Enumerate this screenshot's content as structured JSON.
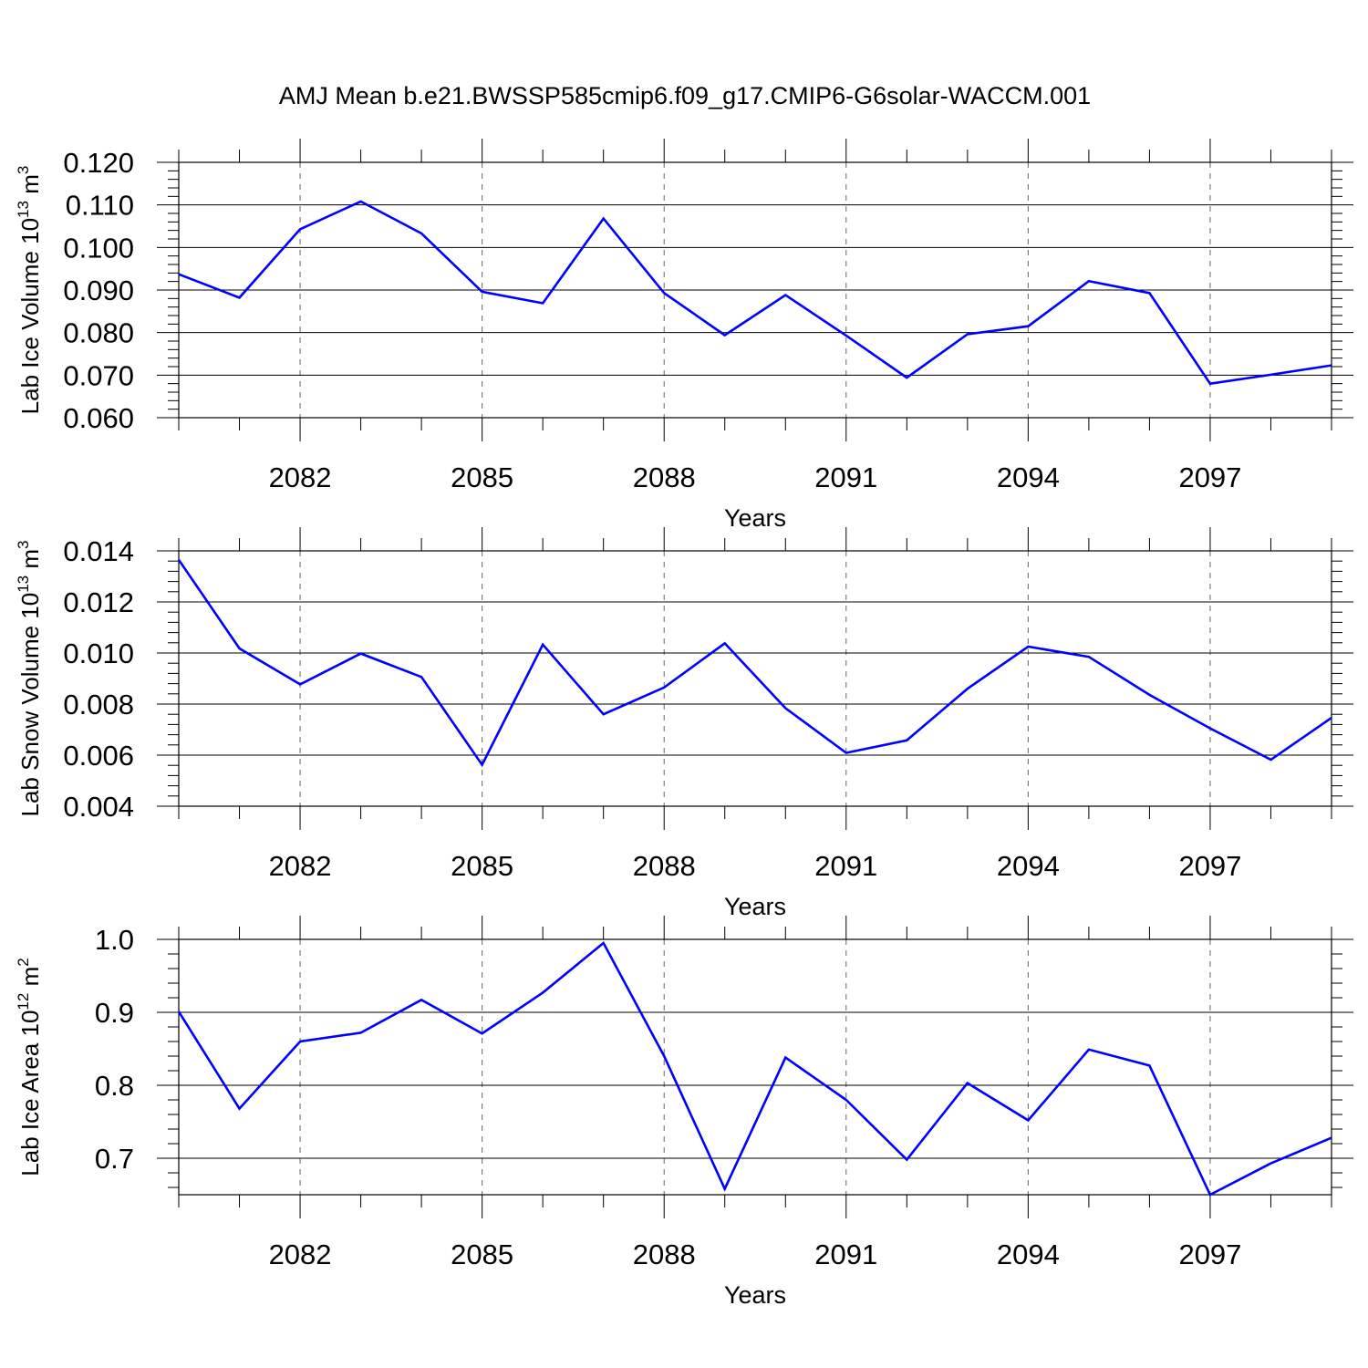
{
  "title": "AMJ Mean b.e21.BWSSP585cmip6.f09_g17.CMIP6-G6solar-WACCM.001",
  "line_color": "#0000ff",
  "chart_data": [
    {
      "type": "line",
      "ylabel": "Lab Ice Volume 10",
      "ylabel_exp": "13",
      "ylabel_unit": " m",
      "ylabel_unit_exp": "3",
      "xlabel": "Years",
      "x": [
        2080,
        2081,
        2082,
        2083,
        2084,
        2085,
        2086,
        2087,
        2088,
        2089,
        2090,
        2091,
        2092,
        2093,
        2094,
        2095,
        2096,
        2097,
        2098,
        2099
      ],
      "values": [
        0.0937,
        0.0882,
        0.1043,
        0.1108,
        0.1033,
        0.0896,
        0.0869,
        0.1068,
        0.0893,
        0.0794,
        0.0888,
        0.0793,
        0.0694,
        0.0796,
        0.0815,
        0.0921,
        0.0893,
        0.068,
        0.0701,
        0.0723
      ],
      "xlim": [
        2080,
        2099
      ],
      "ylim": [
        0.06,
        0.12
      ],
      "xticks": [
        "2082",
        "2085",
        "2088",
        "2091",
        "2094",
        "2097"
      ],
      "yticks": [
        "0.060",
        "0.070",
        "0.080",
        "0.090",
        "0.100",
        "0.110",
        "0.120"
      ]
    },
    {
      "type": "line",
      "ylabel": "Lab Snow Volume 10",
      "ylabel_exp": "13",
      "ylabel_unit": " m",
      "ylabel_unit_exp": "3",
      "xlabel": "Years",
      "x": [
        2080,
        2081,
        2082,
        2083,
        2084,
        2085,
        2086,
        2087,
        2088,
        2089,
        2090,
        2091,
        2092,
        2093,
        2094,
        2095,
        2096,
        2097,
        2098,
        2099
      ],
      "values": [
        0.01365,
        0.01018,
        0.00877,
        0.00998,
        0.00906,
        0.00562,
        0.01033,
        0.0076,
        0.00865,
        0.01038,
        0.00784,
        0.00609,
        0.00658,
        0.0086,
        0.01025,
        0.00985,
        0.00836,
        0.00705,
        0.00582,
        0.00746
      ],
      "xlim": [
        2080,
        2099
      ],
      "ylim": [
        0.004,
        0.014
      ],
      "xticks": [
        "2082",
        "2085",
        "2088",
        "2091",
        "2094",
        "2097"
      ],
      "yticks": [
        "0.004",
        "0.006",
        "0.008",
        "0.010",
        "0.012",
        "0.014"
      ]
    },
    {
      "type": "line",
      "ylabel": "Lab Ice Area 10",
      "ylabel_exp": "12",
      "ylabel_unit": " m",
      "ylabel_unit_exp": "2",
      "xlabel": "Years",
      "x": [
        2080,
        2081,
        2082,
        2083,
        2084,
        2085,
        2086,
        2087,
        2088,
        2089,
        2090,
        2091,
        2092,
        2093,
        2094,
        2095,
        2096,
        2097,
        2098,
        2099
      ],
      "values": [
        0.901,
        0.768,
        0.86,
        0.872,
        0.917,
        0.871,
        0.927,
        0.995,
        0.84,
        0.658,
        0.838,
        0.78,
        0.698,
        0.803,
        0.752,
        0.849,
        0.827,
        0.65,
        0.693,
        0.728
      ],
      "xlim": [
        2080,
        2099
      ],
      "ylim": [
        0.65,
        1.0
      ],
      "xticks": [
        "2082",
        "2085",
        "2088",
        "2091",
        "2094",
        "2097"
      ],
      "yticks": [
        "0.7",
        "0.8",
        "0.9",
        "1.0"
      ]
    }
  ]
}
